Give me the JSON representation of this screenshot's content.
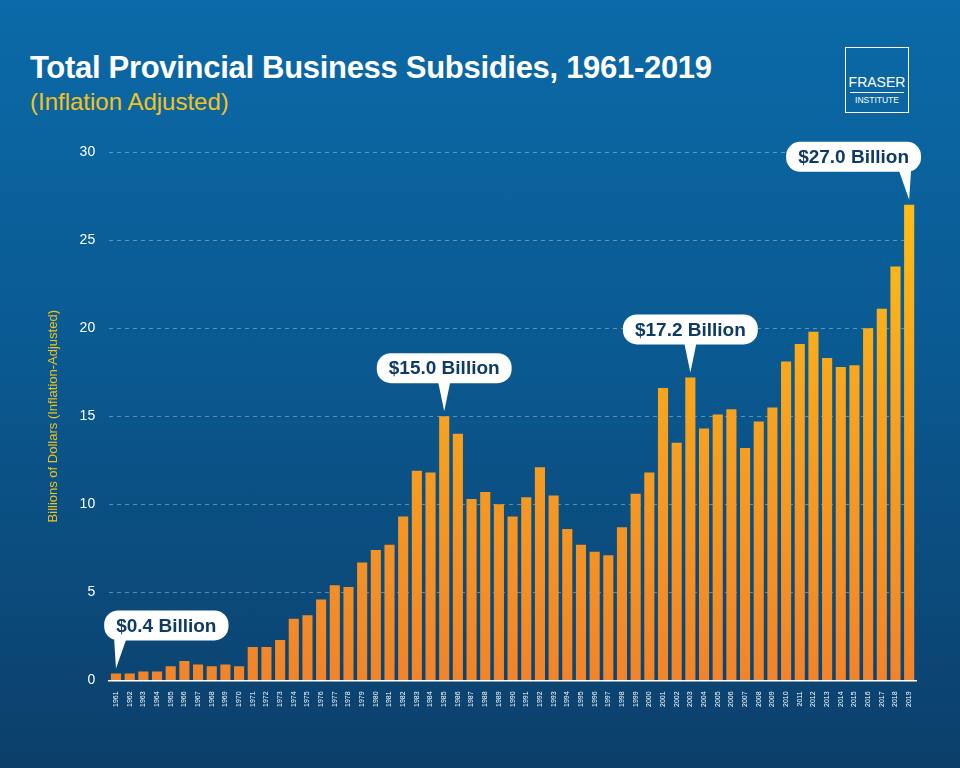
{
  "chart_data": {
    "type": "bar",
    "title": "Total Provincial Business Subsidies, 1961-2019",
    "subtitle": "(Inflation Adjusted)",
    "logo": [
      "FRASER",
      "INSTITUTE"
    ],
    "y_label": "Billions of Dollars (Inflation-Adjusted)",
    "categories": [
      "1961",
      "1962",
      "1963",
      "1964",
      "1965",
      "1966",
      "1967",
      "1968",
      "1969",
      "1970",
      "1971",
      "1972",
      "1973",
      "1974",
      "1975",
      "1976",
      "1977",
      "1978",
      "1979",
      "1980",
      "1981",
      "1982",
      "1983",
      "1984",
      "1985",
      "1986",
      "1987",
      "1988",
      "1989",
      "1990",
      "1991",
      "1992",
      "1993",
      "1994",
      "1995",
      "1996",
      "1997",
      "1998",
      "1999",
      "2000",
      "2001",
      "2002",
      "2003",
      "2004",
      "2005",
      "2006",
      "2007",
      "2008",
      "2009",
      "2010",
      "2011",
      "2012",
      "2013",
      "2014",
      "2015",
      "2016",
      "2017",
      "2018",
      "2019"
    ],
    "values": [
      0.4,
      0.4,
      0.5,
      0.5,
      0.8,
      1.1,
      0.9,
      0.8,
      0.9,
      0.8,
      1.9,
      1.9,
      2.3,
      3.5,
      3.7,
      4.6,
      5.4,
      5.3,
      6.7,
      7.4,
      7.7,
      9.3,
      11.9,
      11.8,
      15.0,
      14.0,
      10.3,
      10.7,
      10.0,
      9.3,
      10.4,
      12.1,
      10.5,
      8.6,
      7.7,
      7.3,
      7.1,
      8.7,
      10.6,
      11.8,
      16.6,
      13.5,
      17.2,
      14.3,
      15.1,
      15.4,
      13.2,
      14.7,
      15.5,
      18.1,
      19.1,
      19.8,
      18.3,
      17.8,
      17.9,
      20.0,
      21.1,
      23.5,
      27.0
    ],
    "color": "#ffc414",
    "ylim": [
      0,
      30
    ],
    "yticks": [
      0,
      5,
      10,
      15,
      20,
      25,
      30
    ],
    "grid": true,
    "annotations": [
      {
        "category": "1961",
        "label": "$0.4 Billion"
      },
      {
        "category": "1985",
        "label": "$15.0 Billion"
      },
      {
        "category": "2003",
        "label": "$17.2 Billion"
      },
      {
        "category": "2019",
        "label": "$27.0 Billion"
      }
    ]
  }
}
